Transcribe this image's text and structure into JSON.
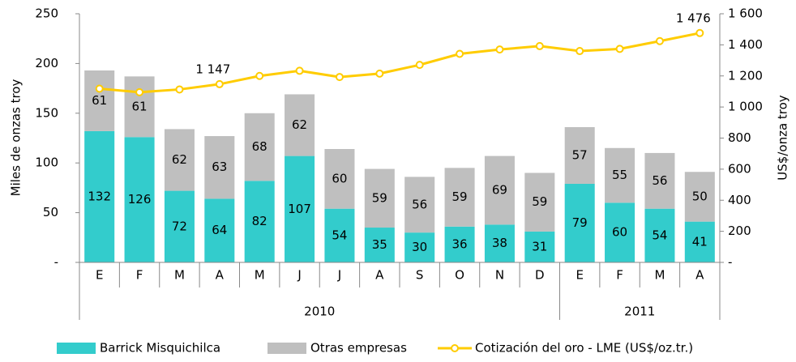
{
  "chart_data": {
    "type": "bar",
    "stacked": true,
    "y_label": "Miles de onzas troy",
    "y2_label": "US$/onza troy",
    "groups": [
      {
        "label": "2010",
        "categories": [
          "E",
          "F",
          "M",
          "A",
          "M",
          "J",
          "J",
          "A",
          "S",
          "O",
          "N",
          "D"
        ]
      },
      {
        "label": "2011",
        "categories": [
          "E",
          "F",
          "M",
          "A"
        ]
      }
    ],
    "series": [
      {
        "name": "Barrick Misquichilca",
        "type": "bar",
        "color": "#33cccc",
        "values": [
          132,
          126,
          72,
          64,
          82,
          107,
          54,
          35,
          30,
          36,
          38,
          31,
          79,
          60,
          54,
          41
        ]
      },
      {
        "name": "Otras empresas",
        "type": "bar",
        "color": "#bfbfbf",
        "values": [
          61,
          61,
          62,
          63,
          68,
          62,
          60,
          59,
          56,
          59,
          69,
          59,
          57,
          55,
          56,
          50
        ]
      },
      {
        "name": "Cotización del oro - LME (US$/oz.tr.)",
        "type": "line",
        "axis": "y2",
        "color": "#ffcc00",
        "values": [
          1118,
          1095,
          1113,
          1147,
          1200,
          1233,
          1193,
          1215,
          1271,
          1342,
          1370,
          1392,
          1360,
          1374,
          1424,
          1476
        ],
        "value_labels": [
          null,
          null,
          null,
          "1 147",
          null,
          null,
          null,
          null,
          null,
          null,
          null,
          null,
          null,
          null,
          null,
          "1 476"
        ]
      }
    ],
    "ylim": [
      0,
      250
    ],
    "yticks": [
      {
        "value": 0,
        "label": "-"
      },
      50,
      100,
      150,
      200,
      250
    ],
    "y2lim": [
      0,
      1600
    ],
    "y2ticks": [
      {
        "value": 0,
        "label": "-"
      },
      200,
      400,
      600,
      800,
      {
        "value": 1000,
        "label": "1 000"
      },
      {
        "value": 1200,
        "label": "1 200"
      },
      {
        "value": 1400,
        "label": "1 400"
      },
      {
        "value": 1600,
        "label": "1 600"
      }
    ],
    "legend": "bottom"
  }
}
